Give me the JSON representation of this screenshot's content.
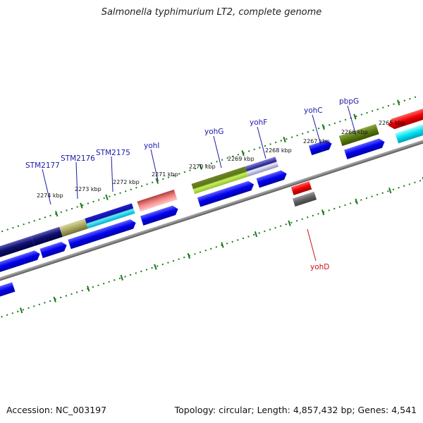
{
  "title": "Salmonella typhimurium LT2, complete genome",
  "footer": {
    "accession": "Accession: NC_003197",
    "summary": "Topology: circular; Length: 4,857,432 bp; Genes: 4,541"
  },
  "scale_labels": [
    "2274 kbp",
    "2273 kbp",
    "2272 kbp",
    "2271 kbp",
    "2270 kbp",
    "2269 kbp",
    "2268 kbp",
    "2267 kbp",
    "2266 kbp",
    "2265 kbp"
  ],
  "gene_labels": [
    "STM2177",
    "STM2176",
    "STM2175",
    "yohI",
    "yohG",
    "yohF",
    "yohC",
    "pbpG",
    "yohD"
  ],
  "colors": {
    "label_blue": "#1a1aa8",
    "label_red": "#cc1111",
    "tick_green": "#1c7a1c",
    "backbone": "#8a8a8a"
  }
}
